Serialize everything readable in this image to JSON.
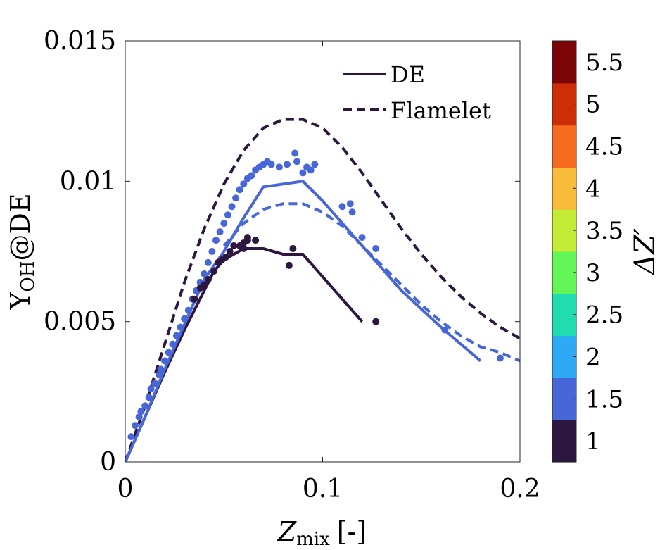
{
  "chart_data": {
    "type": "scatter",
    "xlabel": {
      "main": "Z",
      "sub": "mix",
      "unit": "[-]"
    },
    "ylabel": {
      "main": "Y",
      "sub": "OH",
      "suffix": "@DE"
    },
    "xlim": [
      0,
      0.2
    ],
    "ylim": [
      0,
      0.015
    ],
    "x_ticks": [
      0,
      0.1,
      0.2
    ],
    "x_tick_labels": [
      "0",
      "0.1",
      "0.2"
    ],
    "y_ticks": [
      0,
      0.005,
      0.01,
      0.015
    ],
    "y_tick_labels": [
      "0",
      "0.005",
      "0.01",
      "0.015"
    ],
    "grid": false,
    "legend_position": "top-right",
    "legend": [
      {
        "label": "DE",
        "style": "solid"
      },
      {
        "label": "Flamelet",
        "style": "dashed"
      }
    ],
    "colorbar": {
      "label": "ΔZ′",
      "range": [
        0.75,
        5.75
      ],
      "tick_values": [
        1,
        1.5,
        2,
        2.5,
        3,
        3.5,
        4,
        4.5,
        5,
        5.5
      ],
      "tick_labels": [
        "1",
        "1.5",
        "2",
        "2.5",
        "3",
        "3.5",
        "4",
        "4.5",
        "5",
        "5.5"
      ],
      "colors": [
        "#2d1640",
        "#4766d8",
        "#2ea9f3",
        "#21dcb0",
        "#64f556",
        "#c4eb35",
        "#f9bc3a",
        "#f56b20",
        "#cc2e08",
        "#7a0406"
      ]
    },
    "series": [
      {
        "deltaZ": 1,
        "color": "#2d1640",
        "de_line": {
          "x": [
            0,
            0.01,
            0.02,
            0.03,
            0.04,
            0.045,
            0.05,
            0.055,
            0.06,
            0.065,
            0.07,
            0.08,
            0.09,
            0.12
          ],
          "y": [
            0,
            0.0016,
            0.0032,
            0.0047,
            0.0061,
            0.0068,
            0.0072,
            0.0074,
            0.0076,
            0.0076,
            0.0076,
            0.0074,
            0.0074,
            0.005
          ]
        },
        "flamelet": {
          "x": [
            0,
            0.01,
            0.02,
            0.03,
            0.04,
            0.05,
            0.06,
            0.07,
            0.08,
            0.09,
            0.1,
            0.11,
            0.12,
            0.13,
            0.14,
            0.15,
            0.16,
            0.17,
            0.18,
            0.19,
            0.2
          ],
          "y": [
            0,
            0.002,
            0.0042,
            0.0064,
            0.0083,
            0.0099,
            0.0111,
            0.0119,
            0.0122,
            0.0122,
            0.0119,
            0.0112,
            0.0103,
            0.0093,
            0.0083,
            0.0074,
            0.0066,
            0.0059,
            0.0053,
            0.0048,
            0.0044
          ]
        },
        "points": [
          [
            0.035,
            0.0058
          ],
          [
            0.038,
            0.0062
          ],
          [
            0.04,
            0.0063
          ],
          [
            0.042,
            0.0065
          ],
          [
            0.045,
            0.0068
          ],
          [
            0.047,
            0.0071
          ],
          [
            0.049,
            0.0072
          ],
          [
            0.051,
            0.0073
          ],
          [
            0.053,
            0.0075
          ],
          [
            0.055,
            0.0077
          ],
          [
            0.058,
            0.0077
          ],
          [
            0.06,
            0.0076
          ],
          [
            0.06,
            0.0078
          ],
          [
            0.062,
            0.0079
          ],
          [
            0.062,
            0.008
          ],
          [
            0.066,
            0.0079
          ],
          [
            0.083,
            0.007
          ],
          [
            0.085,
            0.0076
          ],
          [
            0.127,
            0.005
          ]
        ]
      },
      {
        "deltaZ": 1.5,
        "color": "#4766d8",
        "de_line": {
          "x": [
            0,
            0.01,
            0.02,
            0.03,
            0.04,
            0.05,
            0.06,
            0.07,
            0.08,
            0.09,
            0.1,
            0.12,
            0.14,
            0.16,
            0.18
          ],
          "y": [
            0,
            0.0016,
            0.0033,
            0.0049,
            0.0065,
            0.0075,
            0.0087,
            0.0098,
            0.0099,
            0.01,
            0.0093,
            0.0077,
            0.0061,
            0.0048,
            0.0036
          ]
        },
        "flamelet": {
          "x": [
            0.05,
            0.06,
            0.07,
            0.08,
            0.09,
            0.1,
            0.11,
            0.12,
            0.13,
            0.14,
            0.15,
            0.16,
            0.17,
            0.18,
            0.19,
            0.2
          ],
          "y": [
            0.0077,
            0.0085,
            0.009,
            0.0092,
            0.0092,
            0.0089,
            0.0084,
            0.0077,
            0.007,
            0.0063,
            0.0056,
            0.005,
            0.0045,
            0.0041,
            0.0039,
            0.0036
          ]
        },
        "points": [
          [
            0.003,
            0.0009
          ],
          [
            0.005,
            0.0013
          ],
          [
            0.007,
            0.0016
          ],
          [
            0.008,
            0.0018
          ],
          [
            0.01,
            0.002
          ],
          [
            0.012,
            0.0023
          ],
          [
            0.013,
            0.0026
          ],
          [
            0.015,
            0.0028
          ],
          [
            0.017,
            0.0031
          ],
          [
            0.018,
            0.0033
          ],
          [
            0.02,
            0.0036
          ],
          [
            0.022,
            0.0039
          ],
          [
            0.024,
            0.0042
          ],
          [
            0.026,
            0.0045
          ],
          [
            0.028,
            0.0048
          ],
          [
            0.03,
            0.0051
          ],
          [
            0.032,
            0.0054
          ],
          [
            0.034,
            0.0058
          ],
          [
            0.036,
            0.0061
          ],
          [
            0.038,
            0.0064
          ],
          [
            0.04,
            0.0067
          ],
          [
            0.042,
            0.0071
          ],
          [
            0.044,
            0.0075
          ],
          [
            0.046,
            0.0079
          ],
          [
            0.048,
            0.0082
          ],
          [
            0.05,
            0.0085
          ],
          [
            0.052,
            0.0088
          ],
          [
            0.054,
            0.0091
          ],
          [
            0.056,
            0.0094
          ],
          [
            0.058,
            0.0097
          ],
          [
            0.06,
            0.0099
          ],
          [
            0.062,
            0.0101
          ],
          [
            0.064,
            0.0102
          ],
          [
            0.066,
            0.0104
          ],
          [
            0.068,
            0.0105
          ],
          [
            0.07,
            0.0106
          ],
          [
            0.072,
            0.0107
          ],
          [
            0.074,
            0.0106
          ],
          [
            0.078,
            0.0105
          ],
          [
            0.082,
            0.0106
          ],
          [
            0.086,
            0.011
          ],
          [
            0.087,
            0.0107
          ],
          [
            0.09,
            0.0103
          ],
          [
            0.092,
            0.0105
          ],
          [
            0.094,
            0.0104
          ],
          [
            0.096,
            0.0106
          ],
          [
            0.11,
            0.0091
          ],
          [
            0.114,
            0.0092
          ],
          [
            0.115,
            0.0089
          ],
          [
            0.12,
            0.008
          ],
          [
            0.127,
            0.0076
          ],
          [
            0.162,
            0.0047
          ],
          [
            0.19,
            0.0037
          ]
        ]
      }
    ]
  }
}
